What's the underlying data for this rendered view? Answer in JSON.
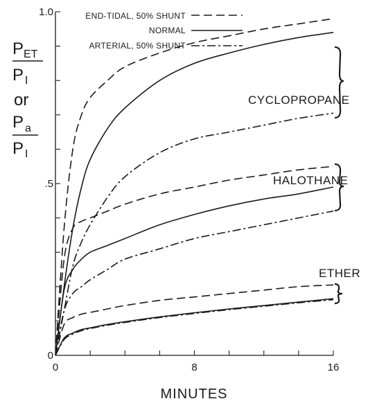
{
  "chart_data": {
    "type": "line",
    "xlabel": "MINUTES",
    "ylabel": {
      "top_main": "P",
      "top_sub": "ET",
      "bottom_main": "P",
      "bottom_sub": "I",
      "or": "or",
      "top2_main": "P",
      "top2_sub": "a",
      "bottom2_main": "P",
      "bottom2_sub": "I"
    },
    "xlim": [
      0,
      16
    ],
    "ylim": [
      0,
      1.0
    ],
    "x_ticks": [
      {
        "v": 0,
        "label": "0"
      },
      {
        "v": 8,
        "label": "8"
      },
      {
        "v": 16,
        "label": "16"
      }
    ],
    "y_ticks": [
      {
        "v": 0,
        "label": "0"
      },
      {
        "v": 0.5,
        "label": ".5"
      },
      {
        "v": 1.0,
        "label": "1.0"
      }
    ],
    "grid": false,
    "legend_position": "top",
    "legend": [
      {
        "label": "END-TIDAL, 50% SHUNT",
        "style": "dashed"
      },
      {
        "label": "NORMAL",
        "style": "solid"
      },
      {
        "label": "ARTERIAL, 50% SHUNT",
        "style": "dashdot"
      }
    ],
    "groups": [
      {
        "agent": "CYCLOPROPANE",
        "series": [
          {
            "style": "dashed",
            "x": [
              0,
              0.5,
              1,
              1.5,
              2,
              3,
              4,
              6,
              8,
              10,
              12,
              14,
              16
            ],
            "y": [
              0,
              0.37,
              0.6,
              0.7,
              0.75,
              0.8,
              0.84,
              0.88,
              0.91,
              0.93,
              0.95,
              0.965,
              0.98
            ]
          },
          {
            "style": "solid",
            "x": [
              0,
              0.5,
              1,
              1.5,
              2,
              3,
              4,
              6,
              8,
              10,
              12,
              14,
              16
            ],
            "y": [
              0,
              0.2,
              0.37,
              0.49,
              0.57,
              0.66,
              0.72,
              0.8,
              0.85,
              0.88,
              0.905,
              0.925,
              0.94
            ]
          },
          {
            "style": "dashdot",
            "x": [
              0,
              0.5,
              1,
              1.5,
              2,
              3,
              4,
              6,
              8,
              10,
              12,
              14,
              16
            ],
            "y": [
              0,
              0.13,
              0.26,
              0.33,
              0.38,
              0.46,
              0.52,
              0.59,
              0.63,
              0.65,
              0.67,
              0.69,
              0.705
            ]
          }
        ]
      },
      {
        "agent": "HALOTHANE",
        "series": [
          {
            "style": "dashed",
            "x": [
              0,
              0.5,
              1,
              1.5,
              2,
              3,
              4,
              6,
              8,
              10,
              12,
              14,
              16
            ],
            "y": [
              0,
              0.28,
              0.37,
              0.39,
              0.4,
              0.42,
              0.44,
              0.47,
              0.49,
              0.51,
              0.525,
              0.54,
              0.55
            ]
          },
          {
            "style": "solid",
            "x": [
              0,
              0.5,
              1,
              1.5,
              2,
              3,
              4,
              6,
              8,
              10,
              12,
              14,
              16
            ],
            "y": [
              0,
              0.19,
              0.25,
              0.28,
              0.3,
              0.32,
              0.34,
              0.38,
              0.41,
              0.435,
              0.455,
              0.47,
              0.49
            ]
          },
          {
            "style": "dashdot",
            "x": [
              0,
              0.5,
              1,
              1.5,
              2,
              3,
              4,
              6,
              8,
              10,
              12,
              14,
              16
            ],
            "y": [
              0,
              0.13,
              0.18,
              0.2,
              0.22,
              0.25,
              0.28,
              0.31,
              0.34,
              0.36,
              0.38,
              0.4,
              0.42
            ]
          }
        ]
      },
      {
        "agent": "ETHER",
        "series": [
          {
            "style": "dashed",
            "x": [
              0,
              0.5,
              1,
              1.5,
              2,
              3,
              4,
              6,
              8,
              10,
              12,
              14,
              16
            ],
            "y": [
              0,
              0.09,
              0.11,
              0.12,
              0.125,
              0.135,
              0.145,
              0.16,
              0.17,
              0.18,
              0.19,
              0.2,
              0.205
            ]
          },
          {
            "style": "solid",
            "x": [
              0,
              0.5,
              1,
              1.5,
              2,
              3,
              4,
              6,
              8,
              10,
              12,
              14,
              16
            ],
            "y": [
              0,
              0.05,
              0.065,
              0.075,
              0.08,
              0.09,
              0.098,
              0.112,
              0.124,
              0.135,
              0.145,
              0.155,
              0.165
            ]
          },
          {
            "style": "dashdot",
            "x": [
              0,
              0.5,
              1,
              1.5,
              2,
              3,
              4,
              6,
              8,
              10,
              12,
              14,
              16
            ],
            "y": [
              0,
              0.046,
              0.062,
              0.072,
              0.078,
              0.088,
              0.096,
              0.11,
              0.122,
              0.133,
              0.143,
              0.153,
              0.162
            ]
          }
        ]
      }
    ]
  }
}
